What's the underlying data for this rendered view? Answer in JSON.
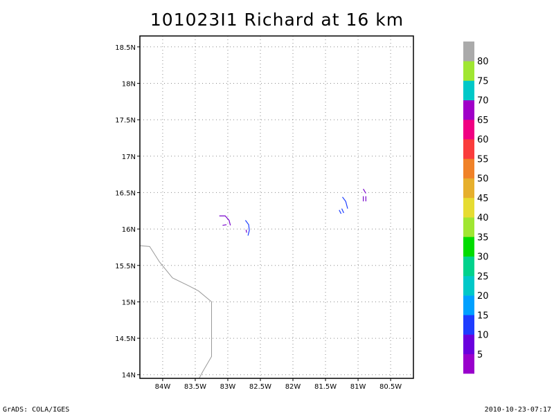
{
  "title": "101023I1 Richard at 16 km",
  "footer": {
    "left": "GrADS: COLA/IGES",
    "right": "2010-10-23-07:17"
  },
  "map": {
    "lon_range": [
      -84.35,
      -80.15
    ],
    "lat_range": [
      13.95,
      18.65
    ],
    "lon_ticks": [
      {
        "v": -84.0,
        "label": "84W"
      },
      {
        "v": -83.5,
        "label": "83.5W"
      },
      {
        "v": -83.0,
        "label": "83W"
      },
      {
        "v": -82.5,
        "label": "82.5W"
      },
      {
        "v": -82.0,
        "label": "82W"
      },
      {
        "v": -81.5,
        "label": "81.5W"
      },
      {
        "v": -81.0,
        "label": "81W"
      },
      {
        "v": -80.5,
        "label": "80.5W"
      }
    ],
    "lat_ticks": [
      {
        "v": 14.0,
        "label": "14N"
      },
      {
        "v": 14.5,
        "label": "14.5N"
      },
      {
        "v": 15.0,
        "label": "15N"
      },
      {
        "v": 15.5,
        "label": "15.5N"
      },
      {
        "v": 16.0,
        "label": "16N"
      },
      {
        "v": 16.5,
        "label": "16.5N"
      },
      {
        "v": 17.0,
        "label": "17N"
      },
      {
        "v": 17.5,
        "label": "17.5N"
      },
      {
        "v": 18.0,
        "label": "18N"
      },
      {
        "v": 18.5,
        "label": "18.5N"
      }
    ],
    "coastline": [
      [
        -84.35,
        15.77
      ],
      [
        -84.2,
        15.76
      ],
      [
        -84.05,
        15.55
      ],
      [
        -83.85,
        15.33
      ],
      [
        -83.6,
        15.22
      ],
      [
        -83.45,
        15.15
      ],
      [
        -83.25,
        15.0
      ],
      [
        -83.25,
        14.25
      ],
      [
        -83.38,
        14.05
      ],
      [
        -83.44,
        13.95
      ]
    ],
    "wind_segments": [
      {
        "color": "#7700cc",
        "points": [
          [
            -83.13,
            16.18
          ],
          [
            -83.04,
            16.18
          ],
          [
            -82.98,
            16.12
          ],
          [
            -82.96,
            16.05
          ]
        ]
      },
      {
        "color": "#7700cc",
        "points": [
          [
            -83.02,
            16.06
          ],
          [
            -83.08,
            16.05
          ]
        ]
      },
      {
        "color": "#1a3cff",
        "points": [
          [
            -82.73,
            16.12
          ],
          [
            -82.68,
            16.06
          ],
          [
            -82.67,
            15.98
          ],
          [
            -82.69,
            15.91
          ]
        ]
      },
      {
        "color": "#7700cc",
        "points": [
          [
            -82.72,
            15.99
          ],
          [
            -82.71,
            15.95
          ]
        ]
      },
      {
        "color": "#1a3cff",
        "points": [
          [
            -81.24,
            16.44
          ],
          [
            -81.19,
            16.38
          ],
          [
            -81.16,
            16.28
          ]
        ]
      },
      {
        "color": "#1a3cff",
        "points": [
          [
            -81.29,
            16.26
          ],
          [
            -81.26,
            16.21
          ]
        ]
      },
      {
        "color": "#1a3cff",
        "points": [
          [
            -81.25,
            16.28
          ],
          [
            -81.22,
            16.22
          ]
        ]
      },
      {
        "color": "#7700cc",
        "points": [
          [
            -80.92,
            16.55
          ],
          [
            -80.88,
            16.49
          ]
        ]
      },
      {
        "color": "#7700cc",
        "points": [
          [
            -80.92,
            16.45
          ],
          [
            -80.92,
            16.38
          ]
        ]
      },
      {
        "color": "#7700cc",
        "points": [
          [
            -80.88,
            16.45
          ],
          [
            -80.88,
            16.38
          ]
        ]
      }
    ]
  },
  "colorbar": {
    "colors": [
      "#9900cc",
      "#6a00dd",
      "#1e3cff",
      "#00a0ff",
      "#00c8c8",
      "#00d28c",
      "#00dc00",
      "#a0e632",
      "#e6dc32",
      "#e6af2d",
      "#f08228",
      "#fa3c3c",
      "#f00082",
      "#a000c8",
      "#00c8c8",
      "#a0e632",
      "#aaaaaa"
    ],
    "labels": [
      "5",
      "10",
      "15",
      "20",
      "25",
      "30",
      "35",
      "40",
      "45",
      "50",
      "55",
      "60",
      "65",
      "70",
      "75",
      "80"
    ]
  }
}
